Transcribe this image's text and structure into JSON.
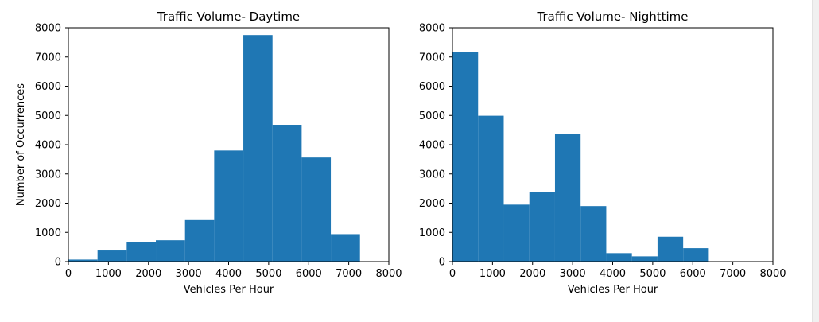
{
  "chart_data": [
    {
      "type": "bar",
      "subtype": "histogram",
      "title": "Traffic Volume- Daytime",
      "xlabel": "Vehicles Per Hour",
      "ylabel": "Number of Occurrences",
      "xlim": [
        0,
        8000
      ],
      "ylim": [
        0,
        8000
      ],
      "xticks": [
        0,
        1000,
        2000,
        3000,
        4000,
        5000,
        6000,
        7000,
        8000
      ],
      "yticks": [
        0,
        1000,
        2000,
        3000,
        4000,
        5000,
        6000,
        7000,
        8000
      ],
      "bin_edges": [
        0,
        728,
        1456,
        2184,
        2912,
        3640,
        4368,
        5096,
        5824,
        6552,
        7280
      ],
      "values": [
        70,
        380,
        680,
        730,
        1420,
        3800,
        7750,
        4680,
        3560,
        940
      ],
      "color": "#1f77b4",
      "grid": false,
      "legend": "none"
    },
    {
      "type": "bar",
      "subtype": "histogram",
      "title": "Traffic Volume- Nighttime",
      "xlabel": "Vehicles Per Hour",
      "ylabel": "",
      "xlim": [
        0,
        8000
      ],
      "ylim": [
        0,
        8000
      ],
      "xticks": [
        0,
        1000,
        2000,
        3000,
        4000,
        5000,
        6000,
        7000,
        8000
      ],
      "yticks": [
        0,
        1000,
        2000,
        3000,
        4000,
        5000,
        6000,
        7000,
        8000
      ],
      "bin_edges": [
        0,
        640,
        1280,
        1920,
        2560,
        3200,
        3840,
        4480,
        5120,
        5760,
        6400
      ],
      "values": [
        7180,
        4990,
        1950,
        2370,
        4370,
        1900,
        290,
        180,
        850,
        460
      ],
      "color": "#1f77b4",
      "grid": false,
      "legend": "none"
    }
  ]
}
